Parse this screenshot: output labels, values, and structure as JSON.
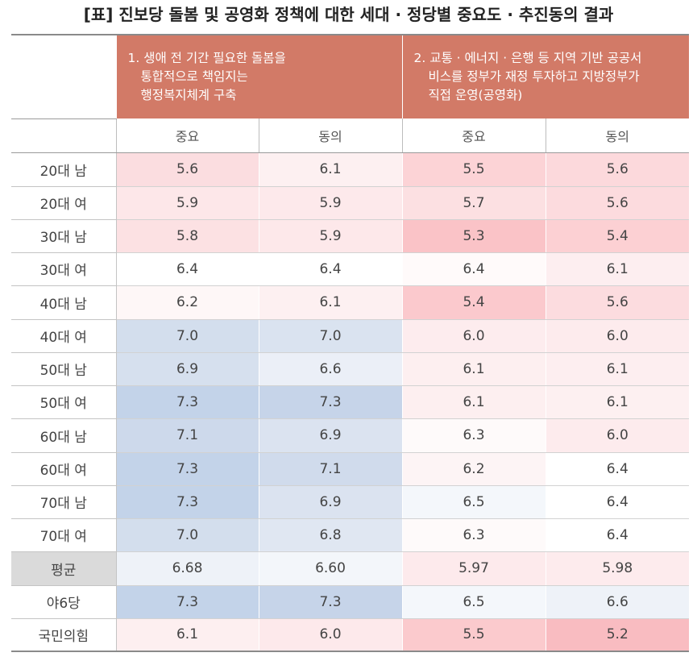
{
  "title": "[표] 진보당 돌봄 및 공영화 정책에 대한 세대 · 정당별 중요도 · 추진동의 결과",
  "policies": [
    {
      "lines": [
        "1. 생애 전 기간 필요한 돌봄을",
        "통합적으로 책임지는",
        "행정복지체계 구축"
      ]
    },
    {
      "lines": [
        "2. 교통 · 에너지 · 은행 등 지역 기반 공공서",
        "비스를 정부가 재정 투자하고 지방정부가",
        "직접 운영(공영화)"
      ]
    }
  ],
  "subheaders": [
    "중요",
    "동의",
    "중요",
    "동의"
  ],
  "rows": [
    {
      "label": "20대 남",
      "values": [
        "5.6",
        "6.1",
        "5.5",
        "5.6"
      ],
      "colors": [
        "#fbdde0",
        "#fdf0f1",
        "#fcd3d6",
        "#fcd9dc"
      ]
    },
    {
      "label": "20대 여",
      "values": [
        "5.9",
        "5.9",
        "5.7",
        "5.6"
      ],
      "colors": [
        "#fde7e9",
        "#fde9eb",
        "#fce0e2",
        "#fcdbde"
      ]
    },
    {
      "label": "30대 남",
      "values": [
        "5.8",
        "5.9",
        "5.3",
        "5.4"
      ],
      "colors": [
        "#fce1e3",
        "#fde8ea",
        "#fac3c7",
        "#fcd0d3"
      ]
    },
    {
      "label": "30대 여",
      "values": [
        "6.4",
        "6.4",
        "6.4",
        "6.1"
      ],
      "colors": [
        "#ffffff",
        "#ffffff",
        "#fffafa",
        "#fdeef0"
      ]
    },
    {
      "label": "40대 남",
      "values": [
        "6.2",
        "6.1",
        "5.4",
        "5.6"
      ],
      "colors": [
        "#fef7f7",
        "#fdf0f1",
        "#fbc9cd",
        "#fcdcdf"
      ]
    },
    {
      "label": "40대 여",
      "values": [
        "7.0",
        "7.0",
        "6.0",
        "6.0"
      ],
      "colors": [
        "#d3deed",
        "#dae3f0",
        "#fdecee",
        "#fdebed"
      ]
    },
    {
      "label": "50대 남",
      "values": [
        "6.9",
        "6.6",
        "6.1",
        "6.1"
      ],
      "colors": [
        "#d6e0ee",
        "#ebeff7",
        "#fdeff0",
        "#fdeef0"
      ]
    },
    {
      "label": "50대 여",
      "values": [
        "7.3",
        "7.3",
        "6.1",
        "6.1"
      ],
      "colors": [
        "#c3d3e9",
        "#c6d4e9",
        "#fdeff0",
        "#fdf0f1"
      ]
    },
    {
      "label": "60대 남",
      "values": [
        "7.1",
        "6.9",
        "6.3",
        "6.0"
      ],
      "colors": [
        "#cdd9eb",
        "#dbe3f0",
        "#fefafa",
        "#fdebed"
      ]
    },
    {
      "label": "60대 여",
      "values": [
        "7.3",
        "7.1",
        "6.2",
        "6.4"
      ],
      "colors": [
        "#c3d3e9",
        "#d0dbec",
        "#fdf4f5",
        "#ffffff"
      ]
    },
    {
      "label": "70대 남",
      "values": [
        "7.3",
        "6.9",
        "6.5",
        "6.4"
      ],
      "colors": [
        "#c3d3e9",
        "#dbe3f0",
        "#f4f7fb",
        "#ffffff"
      ]
    },
    {
      "label": "70대 여",
      "values": [
        "7.0",
        "6.8",
        "6.3",
        "6.4"
      ],
      "colors": [
        "#d3deed",
        "#e0e7f2",
        "#fefafa",
        "#ffffff"
      ]
    },
    {
      "label": "평균",
      "avg": true,
      "values": [
        "6.68",
        "6.60",
        "5.97",
        "5.98"
      ],
      "colors": [
        "#eef2f8",
        "#f3f6fa",
        "#fdeaec",
        "#fdebed"
      ]
    },
    {
      "label": "야6당",
      "values": [
        "7.3",
        "7.3",
        "6.5",
        "6.6"
      ],
      "colors": [
        "#c3d3e9",
        "#c6d4e9",
        "#f4f7fb",
        "#eef2f8"
      ]
    },
    {
      "label": "국민의힘",
      "values": [
        "6.1",
        "6.0",
        "5.5",
        "5.2"
      ],
      "colors": [
        "#fdeff0",
        "#fde9eb",
        "#fbcacd",
        "#f9bcc1"
      ]
    }
  ]
}
